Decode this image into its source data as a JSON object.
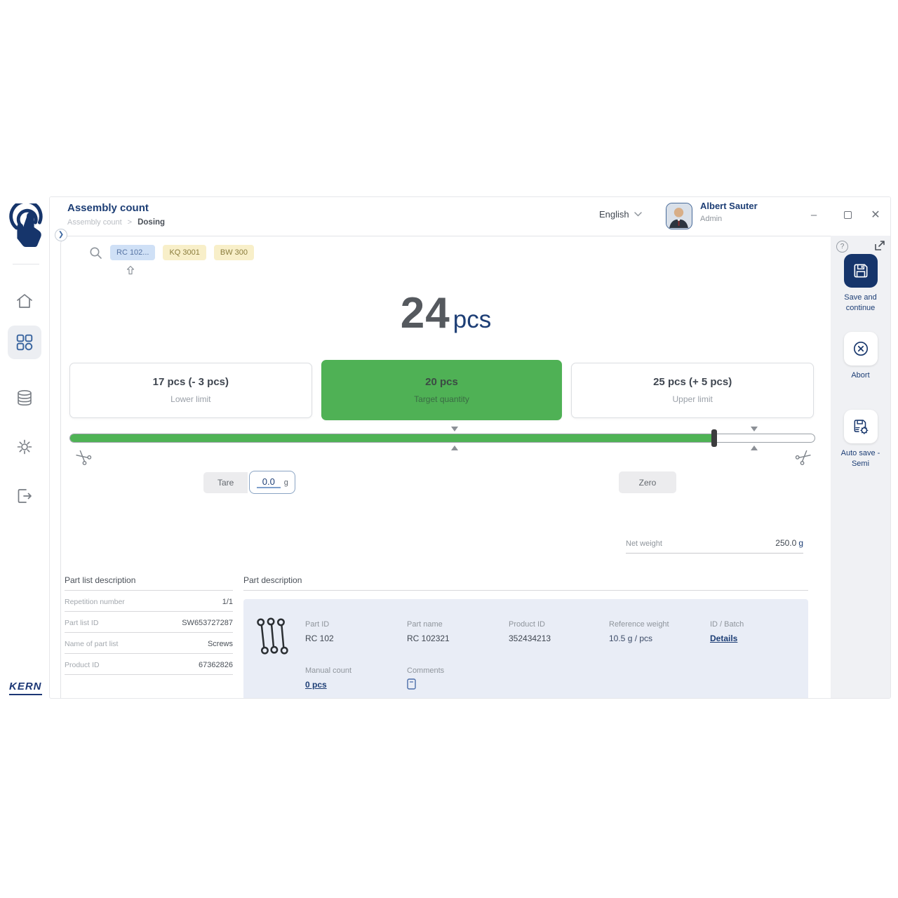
{
  "header": {
    "title": "Assembly count",
    "breadcrumb_parent": "Assembly count",
    "breadcrumb_sep": ">",
    "breadcrumb_current": "Dosing",
    "language": "English",
    "user_name": "Albert Sauter",
    "user_role": "Admin",
    "close_glyph": "✕",
    "minimize_glyph": "–"
  },
  "toolbar": {
    "tags": [
      {
        "label": "RC 102...",
        "style": "blue"
      },
      {
        "label": "KQ 3001",
        "style": "yellow"
      },
      {
        "label": "BW 300",
        "style": "yellow"
      }
    ]
  },
  "count_display": {
    "value": "24",
    "unit": "pcs"
  },
  "limits": {
    "lower": {
      "value": "17 pcs (- 3 pcs)",
      "label": "Lower limit"
    },
    "target": {
      "value": "20 pcs",
      "label": "Target quantity"
    },
    "upper": {
      "value": "25 pcs (+ 5 pcs)",
      "label": "Upper limit"
    }
  },
  "chart_data": {
    "type": "progress-slider",
    "current_pcs": 24,
    "lower_limit_pcs": 17,
    "target_pcs": 20,
    "upper_limit_pcs": 25,
    "fill_percent": 86.5,
    "thumb_percent": 86.5,
    "marker_percents": [
      51.6,
      91.8
    ],
    "fill_color": "#4fb355"
  },
  "weighing": {
    "tare_label": "Tare",
    "tare_value": "0.0",
    "tare_unit": "g",
    "zero_label": "Zero",
    "net_weight_label": "Net weight",
    "net_weight_value": "250.0",
    "net_weight_unit": "g"
  },
  "part_list": {
    "title": "Part list description",
    "rows": [
      {
        "label": "Repetition number",
        "value": "1/1"
      },
      {
        "label": "Part list ID",
        "value": "SW653727287"
      },
      {
        "label": "Name of part list",
        "value": "Screws"
      },
      {
        "label": "Product ID",
        "value": "67362826"
      }
    ]
  },
  "part_description": {
    "title": "Part description",
    "fields": [
      {
        "label": "Part ID",
        "value": "RC 102"
      },
      {
        "label": "Part name",
        "value": "RC 102321"
      },
      {
        "label": "Product ID",
        "value": "352434213"
      },
      {
        "label": "Reference weight",
        "value": "10.5 g / pcs"
      },
      {
        "label": "ID / Batch",
        "value": "Details"
      }
    ],
    "manual_count_label": "Manual count",
    "manual_count_value": "0 pcs",
    "comments_label": "Comments"
  },
  "actions": {
    "save_label": "Save and continue",
    "abort_label": "Abort",
    "autosave_label": "Auto save - Semi",
    "help_glyph": "?"
  },
  "branding": {
    "logo_text": "KERN"
  },
  "colors": {
    "accent_navy": "#1d3e75",
    "button_navy": "#16356b",
    "green": "#4fb355",
    "panel_blue": "#e9edf6",
    "chip_blue_bg": "#cfe0f6",
    "chip_yellow_bg": "#f8efc9",
    "rail_gray": "#f0f1f4"
  }
}
